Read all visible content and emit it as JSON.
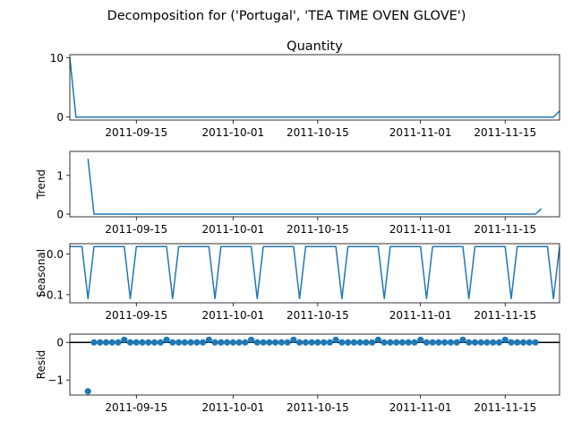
{
  "figure": {
    "suptitle": "Decomposition for ('Portugal', 'TEA TIME OVEN GLOVE')"
  },
  "colors": {
    "line": "#1f77b4",
    "marker": "#1f77b4",
    "zero_line": "#000000",
    "axes": "#000000",
    "background": "#ffffff"
  },
  "chart_data": [
    {
      "type": "line",
      "title": "Quantity",
      "ylabel": "",
      "x_range": [
        "2011-09-04",
        "2011-11-24"
      ],
      "xticks": [
        "2011-09-15",
        "2011-10-01",
        "2011-10-15",
        "2011-11-01",
        "2011-11-15"
      ],
      "ylim": [
        -0.5,
        10.5
      ],
      "yticks": [
        0,
        10
      ],
      "series": [
        {
          "points": [
            [
              "2011-09-04",
              10
            ],
            [
              "2011-09-05",
              0
            ],
            [
              "2011-11-23",
              0
            ],
            [
              "2011-11-24",
              1
            ]
          ]
        }
      ],
      "grid": false
    },
    {
      "type": "line",
      "title": "",
      "ylabel": "Trend",
      "x_range": [
        "2011-09-04",
        "2011-11-24"
      ],
      "xticks": [
        "2011-09-15",
        "2011-10-01",
        "2011-10-15",
        "2011-11-01",
        "2011-11-15"
      ],
      "ylim": [
        -0.07,
        1.62
      ],
      "yticks": [
        0,
        1
      ],
      "series": [
        {
          "points": [
            [
              "2011-09-07",
              1.43
            ],
            [
              "2011-09-08",
              0
            ],
            [
              "2011-11-20",
              0
            ],
            [
              "2011-11-21",
              0.14
            ]
          ]
        }
      ],
      "grid": false
    },
    {
      "type": "line",
      "title": "",
      "ylabel": "Seasonal",
      "x_range": [
        "2011-09-04",
        "2011-11-24"
      ],
      "xticks": [
        "2011-09-15",
        "2011-10-01",
        "2011-10-15",
        "2011-11-01",
        "2011-11-15"
      ],
      "ylim": [
        -0.12,
        0.025
      ],
      "yticks": [
        0.0,
        -0.1
      ],
      "ytick_labels": [
        "0.0",
        "−0.1"
      ],
      "series": [
        {
          "pattern": "weekly",
          "high_value": 0.018,
          "low_value": -0.11,
          "low_dates": [
            "2011-09-07",
            "2011-09-14",
            "2011-09-21",
            "2011-09-28",
            "2011-10-05",
            "2011-10-12",
            "2011-10-19",
            "2011-10-26",
            "2011-11-02",
            "2011-11-09",
            "2011-11-16",
            "2011-11-23"
          ]
        }
      ],
      "grid": false
    },
    {
      "type": "scatter",
      "title": "",
      "ylabel": "Resid",
      "x_range": [
        "2011-09-04",
        "2011-11-24"
      ],
      "xticks": [
        "2011-09-15",
        "2011-10-01",
        "2011-10-15",
        "2011-11-01",
        "2011-11-15"
      ],
      "ylim": [
        -1.4,
        0.22
      ],
      "yticks": [
        0,
        -1
      ],
      "ytick_labels": [
        "0",
        "−1"
      ],
      "zero_line": true,
      "series": [
        {
          "x_start": "2011-09-07",
          "x_end": "2011-11-20",
          "base_value": 0.0,
          "elevated_value": 0.07,
          "elevated_dates": [
            "2011-09-13",
            "2011-09-20",
            "2011-09-27",
            "2011-10-04",
            "2011-10-11",
            "2011-10-18",
            "2011-10-25",
            "2011-11-01",
            "2011-11-08",
            "2011-11-15"
          ],
          "outliers": [
            [
              "2011-09-07",
              -1.3
            ]
          ]
        }
      ],
      "grid": false
    }
  ]
}
